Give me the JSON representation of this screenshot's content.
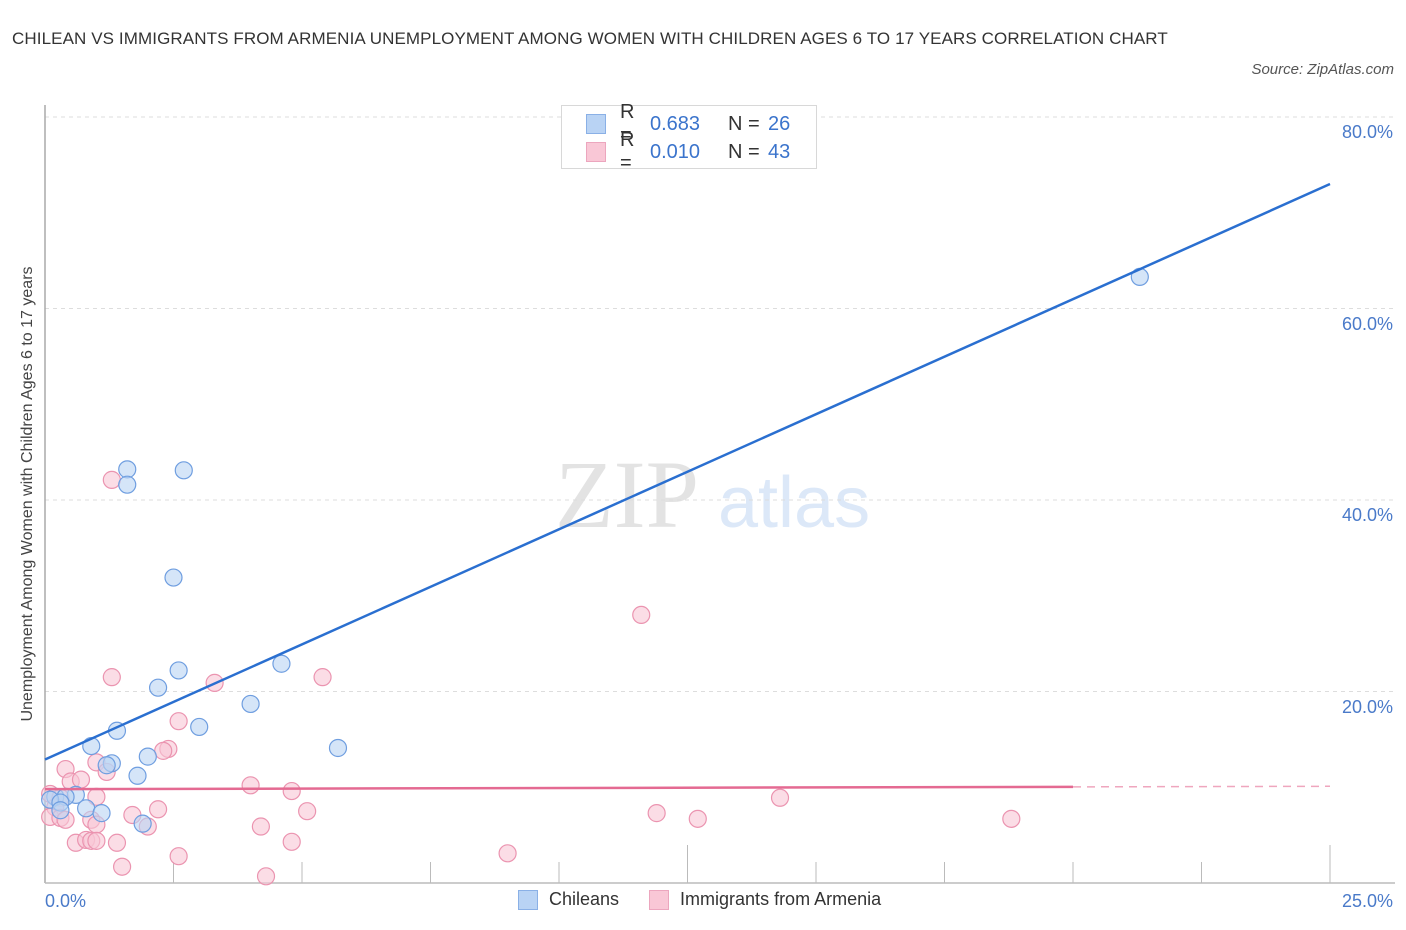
{
  "header": {
    "title": "CHILEAN VS IMMIGRANTS FROM ARMENIA UNEMPLOYMENT AMONG WOMEN WITH CHILDREN AGES 6 TO 17 YEARS CORRELATION CHART",
    "source": "Source: ZipAtlas.com"
  },
  "legend": {
    "rows": [
      {
        "r_label": "R =",
        "r_value": "0.683",
        "n_label": "N =",
        "n_value": "26"
      },
      {
        "r_label": "R =",
        "r_value": "0.010",
        "n_label": "N =",
        "n_value": "43"
      }
    ],
    "bottom": [
      "Chileans",
      "Immigrants from Armenia"
    ]
  },
  "axes": {
    "ylabel": "Unemployment Among Women with Children Ages 6 to 17 years",
    "yticks": [
      "80.0%",
      "60.0%",
      "40.0%",
      "20.0%"
    ],
    "xticks": [
      "0.0%",
      "25.0%"
    ]
  },
  "watermark": {
    "zip": "ZIP",
    "atlas": "atlas"
  },
  "colors": {
    "blue_fill": "#b9d3f4",
    "blue_stroke": "#6f9ee0",
    "blue_line": "#2a6fd0",
    "pink_fill": "#f9c7d6",
    "pink_stroke": "#eb94b0",
    "pink_line": "#e46a92",
    "tick_text": "#4a7ac9"
  },
  "chart_data": {
    "type": "scatter",
    "title": "CHILEAN VS IMMIGRANTS FROM ARMENIA UNEMPLOYMENT AMONG WOMEN WITH CHILDREN AGES 6 TO 17 YEARS CORRELATION CHART",
    "xlabel": "",
    "ylabel": "Unemployment Among Women with Children Ages 6 to 17 years",
    "xlim": [
      0,
      25
    ],
    "ylim": [
      0,
      80
    ],
    "x_tick_labels": [
      "0.0%",
      "25.0%"
    ],
    "y_tick_labels": [
      "20.0%",
      "40.0%",
      "60.0%",
      "80.0%"
    ],
    "grid": true,
    "legend_position": "top-center and bottom",
    "series": [
      {
        "name": "Chileans",
        "R": 0.683,
        "N": 26,
        "trendline": {
          "x": [
            0,
            25
          ],
          "y": [
            12.9,
            73.0
          ]
        },
        "points": [
          [
            21.3,
            63.3
          ],
          [
            1.6,
            43.2
          ],
          [
            1.6,
            41.6
          ],
          [
            2.7,
            43.1
          ],
          [
            2.5,
            31.9
          ],
          [
            2.6,
            22.2
          ],
          [
            2.2,
            20.4
          ],
          [
            4.6,
            22.9
          ],
          [
            4.0,
            18.7
          ],
          [
            3.0,
            16.3
          ],
          [
            1.4,
            15.9
          ],
          [
            0.9,
            14.3
          ],
          [
            2.0,
            13.2
          ],
          [
            5.7,
            14.1
          ],
          [
            1.3,
            12.5
          ],
          [
            1.8,
            11.2
          ],
          [
            0.6,
            9.2
          ],
          [
            0.2,
            9.0
          ],
          [
            0.4,
            9.0
          ],
          [
            0.1,
            8.7
          ],
          [
            0.3,
            8.4
          ],
          [
            0.8,
            7.8
          ],
          [
            1.1,
            7.3
          ],
          [
            1.9,
            6.2
          ],
          [
            0.3,
            7.6
          ],
          [
            1.2,
            12.3
          ]
        ]
      },
      {
        "name": "Immigrants from Armenia",
        "R": 0.01,
        "N": 43,
        "trendline": {
          "x": [
            0,
            25
          ],
          "y": [
            9.8,
            10.1
          ],
          "solid_until_x": 20
        },
        "points": [
          [
            1.3,
            42.1
          ],
          [
            11.6,
            28.0
          ],
          [
            1.3,
            21.5
          ],
          [
            5.4,
            21.5
          ],
          [
            3.3,
            20.9
          ],
          [
            2.6,
            16.9
          ],
          [
            2.4,
            14.0
          ],
          [
            2.3,
            13.8
          ],
          [
            1.0,
            12.6
          ],
          [
            0.4,
            11.9
          ],
          [
            1.2,
            11.6
          ],
          [
            0.5,
            10.6
          ],
          [
            0.7,
            10.8
          ],
          [
            4.0,
            10.2
          ],
          [
            4.8,
            9.6
          ],
          [
            0.1,
            9.3
          ],
          [
            0.3,
            8.9
          ],
          [
            1.0,
            9.0
          ],
          [
            14.3,
            8.9
          ],
          [
            0.2,
            7.9
          ],
          [
            2.2,
            7.7
          ],
          [
            5.1,
            7.5
          ],
          [
            0.1,
            6.9
          ],
          [
            0.3,
            6.8
          ],
          [
            11.9,
            7.3
          ],
          [
            0.4,
            6.6
          ],
          [
            0.9,
            6.6
          ],
          [
            1.7,
            7.1
          ],
          [
            1.0,
            6.1
          ],
          [
            2.0,
            5.9
          ],
          [
            4.2,
            5.9
          ],
          [
            12.7,
            6.7
          ],
          [
            18.8,
            6.7
          ],
          [
            0.6,
            4.2
          ],
          [
            0.8,
            4.5
          ],
          [
            0.9,
            4.4
          ],
          [
            1.0,
            4.4
          ],
          [
            1.4,
            4.2
          ],
          [
            4.8,
            4.3
          ],
          [
            9.0,
            3.1
          ],
          [
            2.6,
            2.8
          ],
          [
            1.5,
            1.7
          ],
          [
            4.3,
            0.7
          ]
        ]
      }
    ]
  }
}
